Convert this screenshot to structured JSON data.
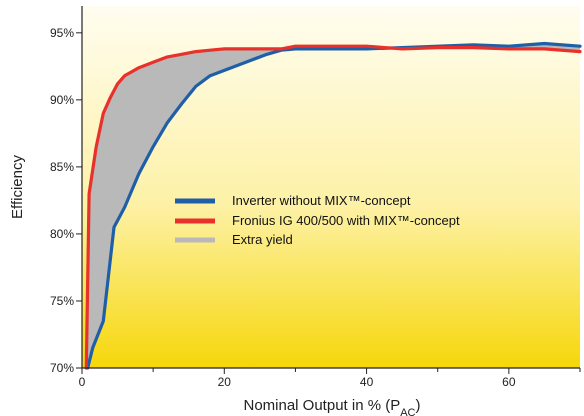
{
  "chart_data": {
    "type": "area",
    "title": "",
    "xlabel": "Nominal Output in % (P",
    "xlabel_sub": "AC",
    "xlabel_end": ")",
    "ylabel": "Efficiency",
    "xlim": [
      0,
      70
    ],
    "ylim": [
      70,
      97
    ],
    "x_ticks": [
      0,
      20,
      40,
      60
    ],
    "y_ticks": [
      70,
      75,
      80,
      85,
      90,
      95
    ],
    "y_tick_labels": [
      "70%",
      "75%",
      "80%",
      "85%",
      "90%",
      "95%"
    ],
    "grid": false,
    "legend_position": "center",
    "series": [
      {
        "name": "Inverter without MIX™-concept",
        "color": "#1f5fa8",
        "x": [
          0.8,
          1.5,
          3,
          4.5,
          6,
          8,
          10,
          12,
          14,
          16,
          18,
          20,
          22,
          24,
          26,
          28,
          30,
          35,
          40,
          45,
          50,
          55,
          60,
          65,
          70
        ],
        "y": [
          70.0,
          71.5,
          73.5,
          80.5,
          82.0,
          84.5,
          86.5,
          88.3,
          89.7,
          91.0,
          91.8,
          92.2,
          92.6,
          93.0,
          93.4,
          93.7,
          93.8,
          93.8,
          93.8,
          93.9,
          94.0,
          94.1,
          94.0,
          94.2,
          94.0
        ]
      },
      {
        "name": "Fronius IG 400/500 with MIX™-concept",
        "color": "#e8312a",
        "x": [
          0.6,
          1,
          2,
          3,
          4,
          5,
          6,
          8,
          10,
          12,
          14,
          16,
          18,
          20,
          22,
          25,
          28,
          30,
          40,
          45,
          50,
          55,
          60,
          65,
          70
        ],
        "y": [
          70.0,
          83.0,
          86.5,
          89.0,
          90.2,
          91.2,
          91.8,
          92.4,
          92.8,
          93.2,
          93.4,
          93.6,
          93.7,
          93.8,
          93.8,
          93.8,
          93.8,
          94.0,
          94.0,
          93.8,
          93.9,
          93.9,
          93.8,
          93.8,
          93.6
        ]
      }
    ],
    "extra_yield": {
      "name": "Extra yield",
      "color": "#b9b9b9"
    }
  }
}
